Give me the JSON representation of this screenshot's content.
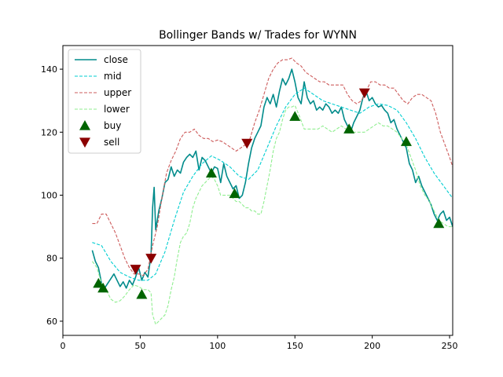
{
  "chart_data": {
    "type": "line",
    "title": "Bollinger Bands w/ Trades for WYNN",
    "xlabel": "",
    "ylabel": "",
    "xlim": [
      0,
      252
    ],
    "ylim": [
      55.5,
      147.5
    ],
    "xticks": [
      0,
      50,
      100,
      150,
      200,
      250
    ],
    "yticks": [
      60,
      80,
      100,
      120,
      140
    ],
    "grid": false,
    "legend": "upper-left",
    "series": [
      {
        "name": "close",
        "style": "solid",
        "color": "#008b8b",
        "x": [
          19,
          21,
          23,
          25,
          27,
          29,
          31,
          33,
          35,
          37,
          39,
          41,
          43,
          45,
          47,
          49,
          51,
          53,
          55,
          57,
          58,
          59,
          60,
          62,
          64,
          66,
          68,
          70,
          72,
          74,
          76,
          78,
          80,
          82,
          84,
          86,
          88,
          90,
          92,
          94,
          96,
          98,
          100,
          102,
          104,
          106,
          108,
          110,
          112,
          114,
          116,
          118,
          120,
          122,
          124,
          126,
          128,
          130,
          132,
          134,
          136,
          138,
          140,
          142,
          144,
          146,
          148,
          150,
          152,
          154,
          156,
          158,
          160,
          162,
          164,
          166,
          168,
          170,
          172,
          174,
          176,
          178,
          180,
          182,
          184,
          186,
          188,
          190,
          192,
          194,
          196,
          198,
          200,
          202,
          204,
          206,
          208,
          210,
          212,
          214,
          216,
          218,
          220,
          222,
          224,
          226,
          228,
          230,
          232,
          234,
          236,
          238,
          240,
          242,
          244,
          246,
          248,
          250,
          252
        ],
        "values": [
          82.5,
          79,
          77,
          72,
          70.5,
          72,
          73.5,
          75,
          73,
          71,
          72.5,
          70.5,
          73,
          71.5,
          74,
          77,
          73,
          75.5,
          74,
          81,
          96,
          102.5,
          89,
          95,
          99,
          104,
          105,
          109,
          106,
          108,
          107,
          110.5,
          112,
          113,
          112,
          114,
          108,
          112,
          111,
          109,
          107,
          109,
          108.5,
          104,
          110,
          106,
          104,
          102,
          103,
          99,
          100,
          104,
          110,
          115,
          118,
          120,
          122,
          128,
          131,
          129,
          132,
          128,
          133,
          137,
          135,
          137,
          140,
          136,
          131,
          129,
          136,
          131,
          129,
          130,
          127,
          128,
          127,
          129,
          128,
          126,
          127,
          126,
          128,
          124,
          122,
          120,
          123,
          125,
          127,
          131,
          133,
          130,
          131,
          129,
          128,
          128.5,
          127,
          126,
          123,
          124,
          121,
          119,
          117,
          115,
          110,
          108,
          104,
          106,
          103,
          101,
          99,
          97,
          94,
          92,
          94,
          95,
          92,
          93,
          90
        ]
      },
      {
        "name": "mid",
        "style": "dashed",
        "color": "#00ced1",
        "x": [
          19,
          25,
          31,
          37,
          43,
          49,
          55,
          60,
          66,
          72,
          78,
          84,
          90,
          96,
          102,
          108,
          114,
          120,
          126,
          132,
          138,
          144,
          150,
          156,
          162,
          168,
          174,
          180,
          186,
          192,
          198,
          204,
          210,
          216,
          222,
          228,
          234,
          240,
          246,
          252
        ],
        "values": [
          85,
          84,
          79,
          75.5,
          74,
          73,
          73,
          75,
          82,
          92,
          101,
          106,
          110,
          112.5,
          111,
          109,
          106,
          105,
          108,
          115,
          122,
          128,
          132,
          134,
          132,
          130,
          129,
          128,
          127,
          126,
          128,
          129,
          128.5,
          127,
          123,
          118,
          112,
          107,
          103,
          99
        ]
      },
      {
        "name": "upper",
        "style": "dashed",
        "color": "#cd5c5c",
        "x": [
          19,
          22,
          25,
          28,
          31,
          34,
          37,
          40,
          43,
          46,
          49,
          52,
          55,
          58,
          61,
          64,
          67,
          70,
          73,
          76,
          79,
          82,
          85,
          88,
          91,
          94,
          97,
          100,
          103,
          106,
          109,
          112,
          115,
          118,
          121,
          124,
          127,
          130,
          133,
          136,
          139,
          142,
          145,
          148,
          151,
          154,
          157,
          160,
          163,
          166,
          169,
          172,
          175,
          178,
          181,
          184,
          187,
          190,
          193,
          196,
          199,
          202,
          205,
          208,
          211,
          214,
          217,
          220,
          223,
          226,
          229,
          232,
          235,
          238,
          241,
          244,
          247,
          250,
          252
        ],
        "values": [
          91,
          91,
          94,
          94,
          91,
          88,
          84,
          80,
          77,
          75,
          75,
          74.5,
          76.5,
          84,
          90,
          99,
          107,
          111,
          114,
          118,
          120,
          120,
          121,
          119,
          118,
          118,
          117,
          117.5,
          117,
          116,
          115,
          114,
          115,
          116,
          118,
          123,
          127,
          132,
          137,
          140,
          142,
          143,
          143,
          143.5,
          142,
          141,
          139,
          138,
          137,
          136,
          136,
          135,
          135,
          135,
          135,
          132,
          130,
          129,
          130,
          133,
          136,
          136,
          135,
          135,
          134,
          134,
          132,
          130,
          129,
          131,
          132,
          132,
          131,
          130,
          126,
          120,
          116,
          112,
          109
        ]
      },
      {
        "name": "lower",
        "style": "dashed",
        "color": "#90ee90",
        "x": [
          19,
          22,
          25,
          28,
          31,
          34,
          37,
          40,
          43,
          46,
          49,
          52,
          55,
          57,
          58,
          60,
          62,
          64,
          66,
          68,
          70,
          72,
          74,
          76,
          78,
          80,
          82,
          84,
          86,
          88,
          90,
          92,
          94,
          96,
          98,
          100,
          102,
          104,
          106,
          108,
          110,
          112,
          114,
          116,
          118,
          120,
          122,
          124,
          126,
          128,
          130,
          132,
          134,
          136,
          138,
          140,
          142,
          144,
          146,
          148,
          150,
          153,
          156,
          159,
          162,
          165,
          168,
          171,
          174,
          177,
          180,
          183,
          186,
          189,
          192,
          195,
          198,
          201,
          204,
          207,
          210,
          213,
          216,
          219,
          222,
          225,
          228,
          231,
          234,
          237,
          240,
          243,
          246,
          249,
          252
        ],
        "values": [
          79,
          77,
          72,
          70,
          67,
          66,
          66.5,
          68,
          70,
          71.5,
          71,
          70,
          70,
          69,
          62,
          59,
          60,
          61,
          62,
          65,
          70,
          74,
          80,
          85,
          87,
          88,
          91,
          96,
          99,
          101,
          103,
          104,
          105,
          106,
          105,
          103,
          100,
          100,
          100,
          100,
          99,
          98,
          98,
          97,
          96,
          96,
          95,
          95,
          94,
          94,
          98,
          103,
          108,
          114,
          118,
          120,
          124,
          127,
          128,
          128,
          128.5,
          125,
          121,
          121,
          121,
          121,
          122,
          121,
          120,
          121,
          122,
          121,
          120,
          120,
          120,
          120,
          121,
          122,
          123,
          122,
          122,
          121,
          120,
          118,
          116,
          112,
          108,
          103,
          100,
          98,
          95,
          92,
          91,
          90,
          90
        ]
      }
    ],
    "markers": [
      {
        "name": "buy",
        "shape": "triangle-up",
        "color": "#006400",
        "points": [
          [
            23,
            72
          ],
          [
            26,
            70.5
          ],
          [
            51,
            68.5
          ],
          [
            96,
            107
          ],
          [
            111,
            100.5
          ],
          [
            150,
            125
          ],
          [
            185,
            121
          ],
          [
            222,
            117
          ],
          [
            243,
            91
          ]
        ]
      },
      {
        "name": "sell",
        "shape": "triangle-down",
        "color": "#8b0000",
        "points": [
          [
            47,
            76.5
          ],
          [
            57,
            80
          ],
          [
            119,
            116.5
          ],
          [
            195,
            132.5
          ]
        ]
      }
    ]
  }
}
